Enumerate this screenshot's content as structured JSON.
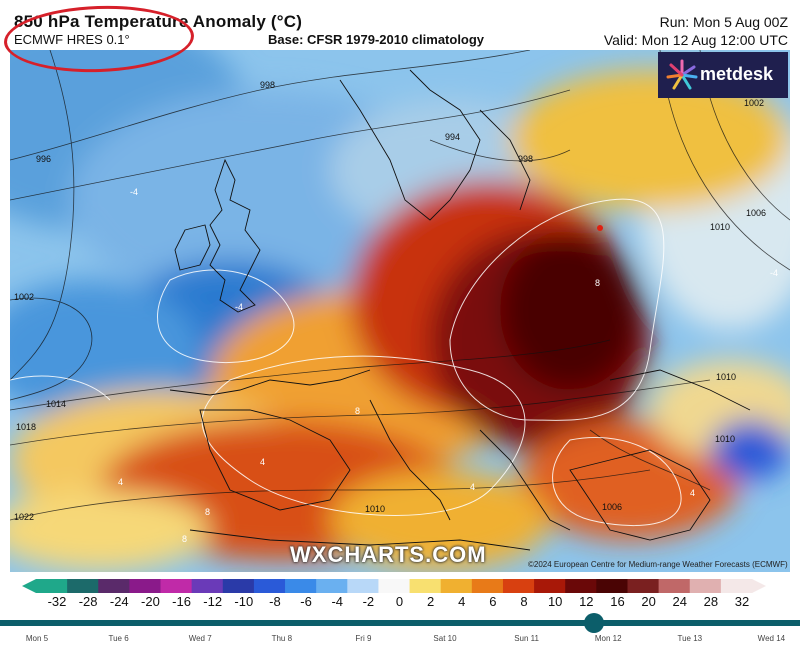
{
  "header": {
    "title": "850 hPa Temperature Anomaly (°C)",
    "model": "ECMWF HRES 0.1°",
    "base": "Base: CFSR 1979-2010 climatology",
    "run": "Run: Mon 5 Aug 00Z",
    "valid": "Valid: Mon 12 Aug 12:00 UTC"
  },
  "logo": {
    "text": "metdesk"
  },
  "watermark": "WXCHARTS.COM",
  "copyright": "©2024 European Centre for Medium-range Weather Forecasts (ECMWF)",
  "map": {
    "isobar_labels": [
      "998",
      "996",
      "994",
      "998",
      "1002",
      "1002",
      "1006",
      "1010",
      "1014",
      "1018",
      "1022",
      "1010",
      "1010",
      "1006",
      "1010"
    ],
    "anomaly_labels": [
      "-4",
      "-4",
      "4",
      "8",
      "8",
      "8",
      "4",
      "4",
      "8",
      "-4",
      "4"
    ]
  },
  "colorbar": {
    "ticks": [
      "-32",
      "-28",
      "-24",
      "-20",
      "-16",
      "-12",
      "-10",
      "-8",
      "-6",
      "-4",
      "-2",
      "0",
      "2",
      "4",
      "6",
      "8",
      "10",
      "12",
      "16",
      "20",
      "24",
      "28",
      "32"
    ],
    "colors": [
      "#1fa88a",
      "#1c6a6a",
      "#5a2a6a",
      "#8a1a8a",
      "#c02aa8",
      "#6a3ab8",
      "#2a3aa8",
      "#2a5ad8",
      "#3a8ae8",
      "#6ab0f0",
      "#b8d8f8",
      "#f8f8f8",
      "#f8e070",
      "#f0b030",
      "#e87a18",
      "#d84010",
      "#a81808",
      "#6a0808",
      "#4a0404",
      "#7a2020",
      "#c06868",
      "#e0b0b0",
      "#f4e8e8"
    ]
  },
  "timeline": {
    "days": [
      "Mon 5",
      "Tue 6",
      "Wed 7",
      "Thu 8",
      "Fri 9",
      "Sat 10",
      "Sun 11",
      "Mon 12",
      "Tue 13",
      "Wed 14"
    ],
    "current": "Mon 12"
  },
  "colors": {
    "annotation": "#d6202a",
    "timeline": "#0c5e6a",
    "logo_bg": "#1f1f4e"
  }
}
